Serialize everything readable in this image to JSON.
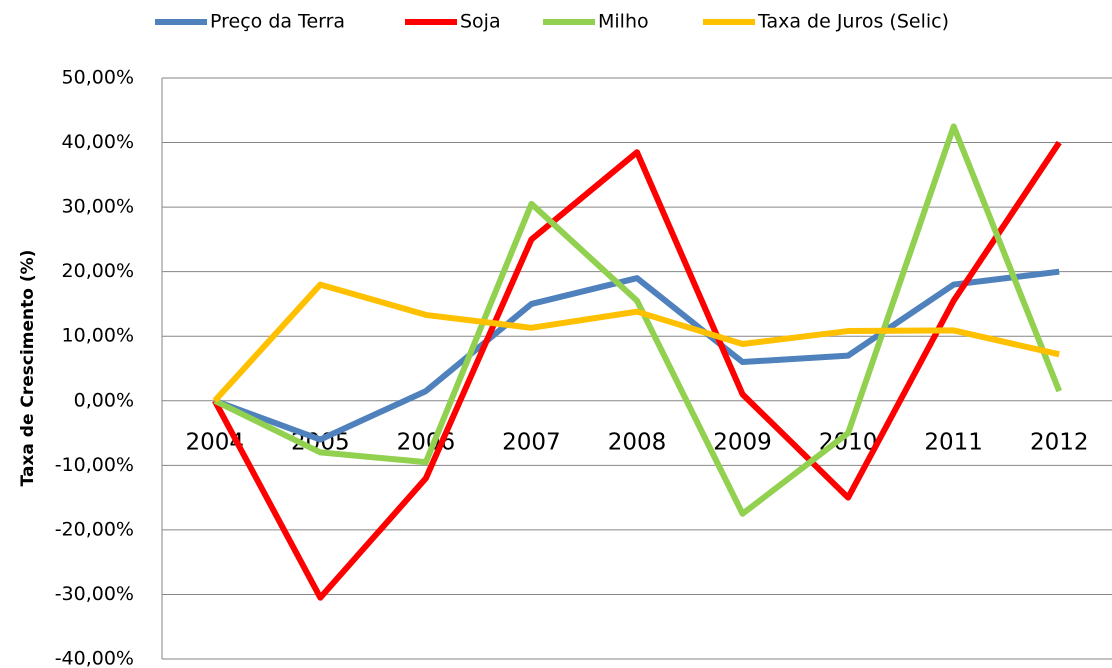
{
  "chart_data": {
    "type": "line",
    "y_axis_label": "Taxa de Crescimento (%)",
    "categories": [
      "2004",
      "2005",
      "2006",
      "2007",
      "2008",
      "2009",
      "2010",
      "2011",
      "2012"
    ],
    "series": [
      {
        "name": "Preço da Terra",
        "color": "#4f81bd",
        "values": [
          0,
          -6,
          1.5,
          15,
          19,
          6,
          7,
          18,
          20
        ]
      },
      {
        "name": "Soja",
        "color": "#ff0000",
        "values": [
          0,
          -30.5,
          -12,
          25,
          38.5,
          1,
          -15,
          15.5,
          40
        ]
      },
      {
        "name": "Milho",
        "color": "#92d050",
        "values": [
          0,
          -8,
          -9.5,
          30.5,
          15.5,
          -17.5,
          -5,
          42.5,
          1.5
        ]
      },
      {
        "name": "Taxa de Juros (Selic)",
        "color": "#ffc000",
        "values": [
          0,
          18,
          13.3,
          11.3,
          13.8,
          8.8,
          10.8,
          10.9,
          7.2
        ]
      }
    ],
    "ylim": [
      -40,
      50
    ],
    "yticks": [
      {
        "value": -40,
        "label": "-40,00%"
      },
      {
        "value": -30,
        "label": "-30,00%"
      },
      {
        "value": -20,
        "label": "-20,00%"
      },
      {
        "value": -10,
        "label": "-10,00%"
      },
      {
        "value": 0,
        "label": "0,00%"
      },
      {
        "value": 10,
        "label": "10,00%"
      },
      {
        "value": 20,
        "label": "20,00%"
      },
      {
        "value": 30,
        "label": "30,00%"
      },
      {
        "value": 40,
        "label": "40,00%"
      },
      {
        "value": 50,
        "label": "50,00%"
      }
    ],
    "grid": true,
    "legend": "top"
  }
}
